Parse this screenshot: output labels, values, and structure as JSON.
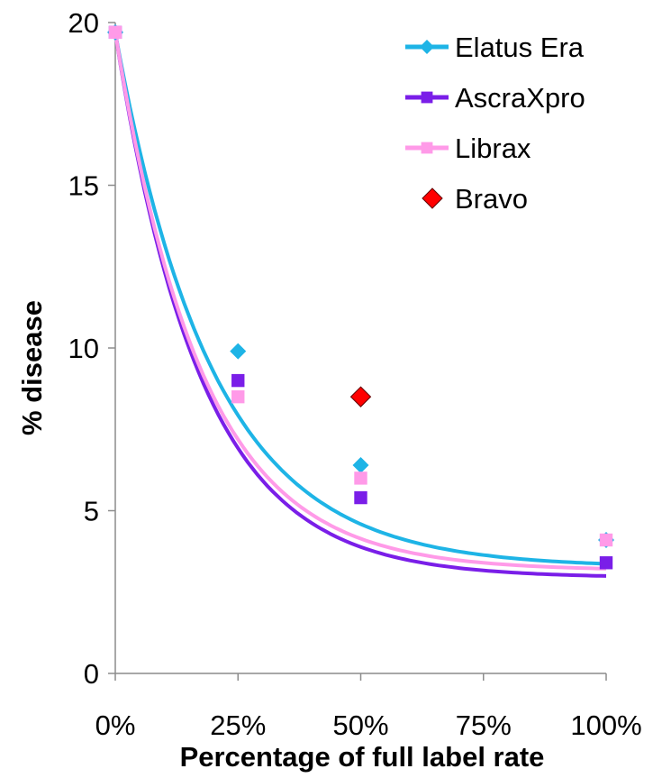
{
  "chart_data": {
    "type": "scatter",
    "xlabel": "Percentage of full label rate",
    "ylabel": "% disease",
    "x_ticks": [
      "0%",
      "25%",
      "50%",
      "75%",
      "100%"
    ],
    "x_tick_values": [
      0,
      25,
      50,
      75,
      100
    ],
    "y_ticks": [
      "0",
      "5",
      "10",
      "15",
      "20"
    ],
    "y_tick_values": [
      0,
      5,
      10,
      15,
      20
    ],
    "xlim": [
      0,
      100
    ],
    "ylim": [
      0,
      20
    ],
    "grid": false,
    "legend_position": "top-right",
    "series": [
      {
        "name": "Elatus Era",
        "color": "#1eb4e6",
        "marker": "diamond",
        "points": [
          [
            0,
            19.7
          ],
          [
            25,
            9.9
          ],
          [
            50,
            6.4
          ],
          [
            100,
            4.1
          ]
        ],
        "trend": {
          "a": 16.43,
          "k": 0.0503,
          "c": 3.26
        }
      },
      {
        "name": "AscraXpro",
        "color": "#7a1ee8",
        "marker": "square",
        "points": [
          [
            0,
            19.7
          ],
          [
            25,
            9.0
          ],
          [
            50,
            5.4
          ],
          [
            100,
            3.4
          ]
        ],
        "trend": {
          "a": 16.76,
          "k": 0.0575,
          "c": 2.94
        }
      },
      {
        "name": "Librax",
        "color": "#ff9ae8",
        "marker": "square",
        "points": [
          [
            0,
            19.7
          ],
          [
            25,
            8.5
          ],
          [
            50,
            6.0
          ],
          [
            100,
            4.1
          ]
        ],
        "trend": {
          "a": 16.54,
          "k": 0.0565,
          "c": 3.16
        }
      },
      {
        "name": "Bravo",
        "color": "#ff0000",
        "marker": "diamond",
        "points": [
          [
            50,
            8.5
          ]
        ]
      }
    ]
  }
}
